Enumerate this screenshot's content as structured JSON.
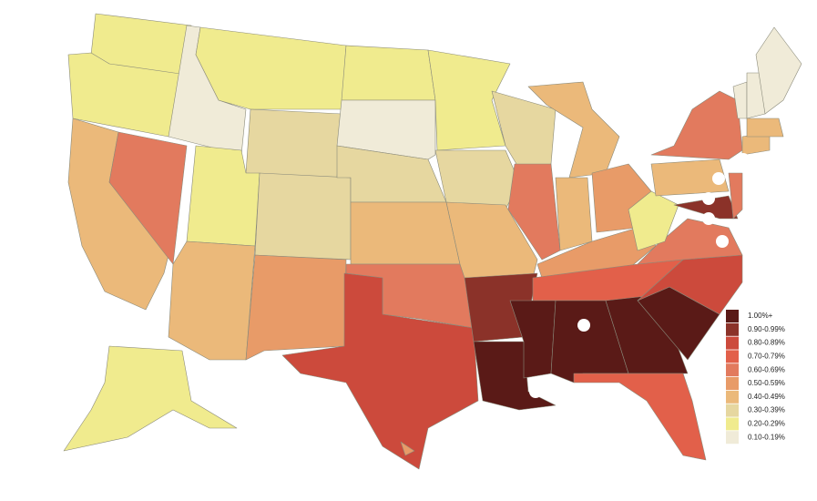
{
  "legend": {
    "items": [
      {
        "label": "1.00%+",
        "color": "#5a1a17"
      },
      {
        "label": "0.90-0.99%",
        "color": "#8b3229"
      },
      {
        "label": "0.80-0.89%",
        "color": "#cc4a3c"
      },
      {
        "label": "0.70-0.79%",
        "color": "#e2604a"
      },
      {
        "label": "0.60-0.69%",
        "color": "#e27a5e"
      },
      {
        "label": "0.50-0.59%",
        "color": "#e89b68"
      },
      {
        "label": "0.40-0.49%",
        "color": "#ebb97a"
      },
      {
        "label": "0.30-0.39%",
        "color": "#e6d7a0"
      },
      {
        "label": "0.20-0.29%",
        "color": "#f0eb8e"
      },
      {
        "label": "0.10-0.19%",
        "color": "#f0ebd8"
      }
    ]
  },
  "regions": [
    8,
    8,
    6,
    9,
    4,
    8,
    7,
    8,
    6,
    7,
    5,
    8,
    9,
    7,
    6,
    4,
    2,
    8,
    7,
    6,
    1,
    0,
    7,
    4,
    6,
    6,
    5,
    5,
    3,
    0,
    0,
    0,
    3,
    0,
    2,
    4,
    8,
    6,
    4,
    1,
    4,
    6,
    6,
    9,
    9,
    9,
    8,
    5
  ]
}
